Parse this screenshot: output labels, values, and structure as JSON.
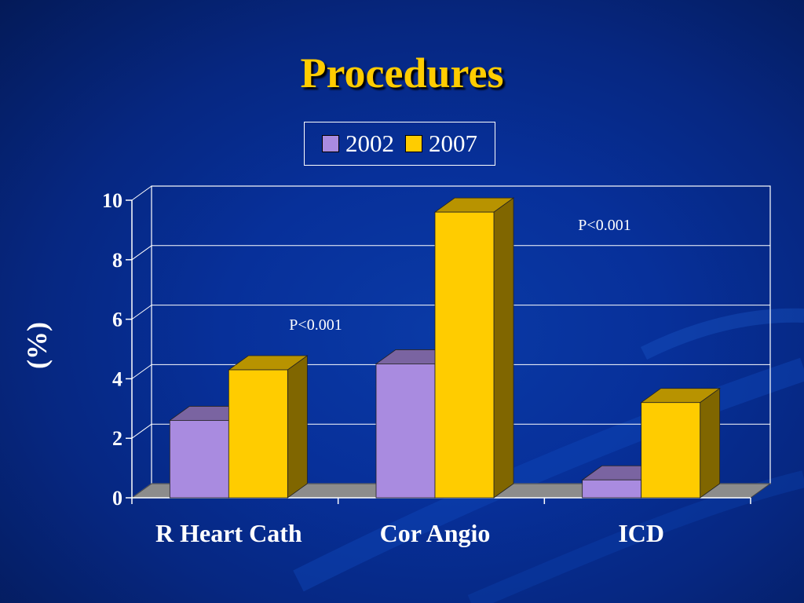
{
  "slide": {
    "title": "Procedures"
  },
  "colors": {
    "series_2002": "#a98be0",
    "series_2007": "#ffcc00",
    "gridline": "#ffffff",
    "floor": "#8c8c8c"
  },
  "chart_data": {
    "type": "bar",
    "title": "Procedures",
    "ylabel": "(%)",
    "xlabel": "",
    "categories": [
      "R Heart Cath",
      "Cor Angio",
      "ICD"
    ],
    "series": [
      {
        "name": "2002",
        "values": [
          2.6,
          4.5,
          0.6
        ]
      },
      {
        "name": "2007",
        "values": [
          4.3,
          9.6,
          3.2
        ]
      }
    ],
    "ylim": [
      0,
      10
    ],
    "yticks": [
      0,
      2,
      4,
      6,
      8,
      10
    ],
    "grid": true,
    "legend": "top",
    "annotations": [
      {
        "text": "P<0.001",
        "category": "R Heart Cath"
      },
      {
        "text": "P<0.001",
        "category": "ICD"
      }
    ]
  }
}
